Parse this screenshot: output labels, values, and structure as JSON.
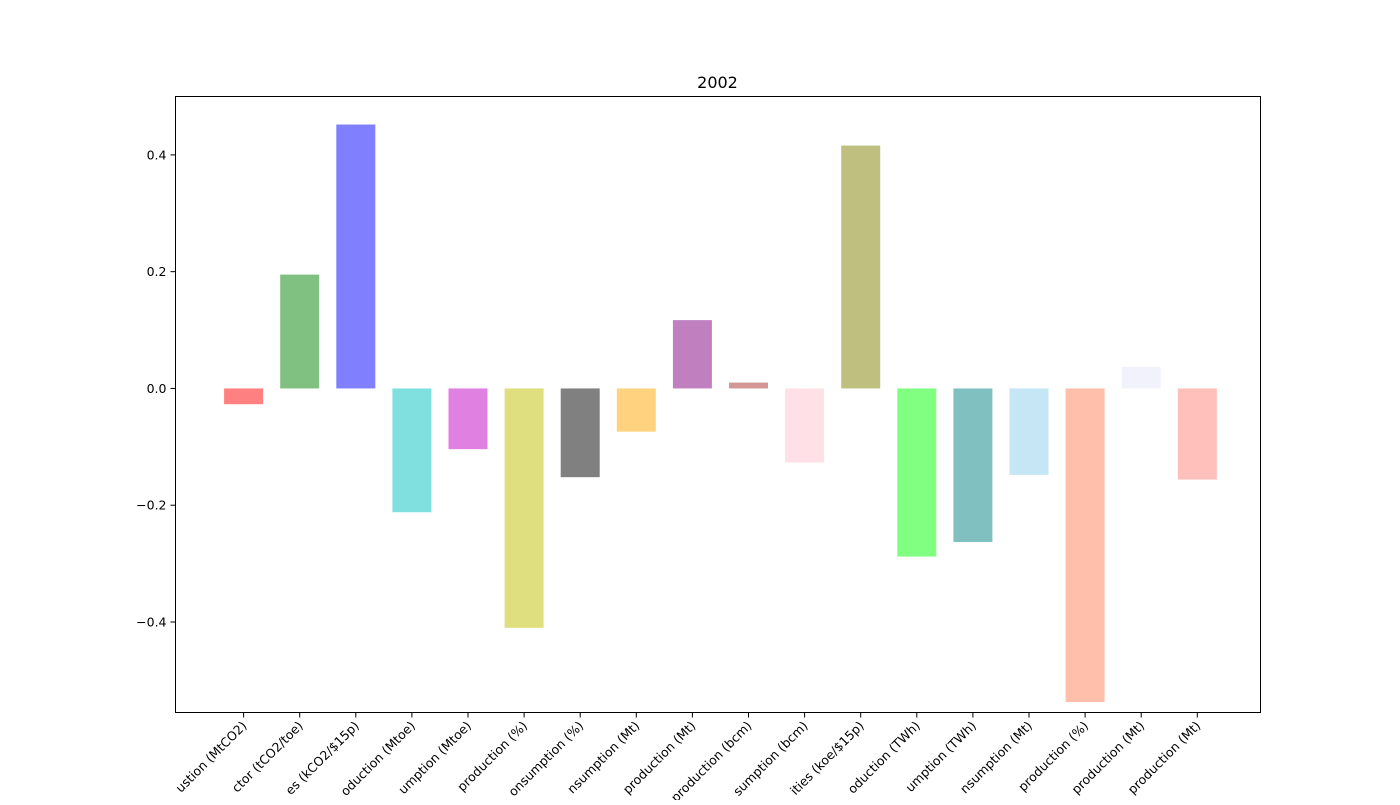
{
  "chart_data": {
    "type": "bar",
    "title": "2002",
    "xlabel": "",
    "ylabel": "",
    "categories": [
      "ustion (MtCO2)",
      "ctor (tCO2/toe)",
      "es (kCO2/$15p)",
      "oduction (Mtoe)",
      "umption (Mtoe)",
      "production (%)",
      "onsumption (%)",
      "nsumption (Mt)",
      "production (Mt)",
      "production (bcm)",
      "sumption (bcm)",
      "ities (koe/$15p)",
      "oduction (TWh)",
      "umption (TWh)",
      "nsumption (Mt)",
      "production (%)",
      "production (Mt)",
      "production (Mt)"
    ],
    "values": [
      -0.027,
      0.195,
      0.452,
      -0.212,
      -0.104,
      -0.41,
      -0.152,
      -0.074,
      0.117,
      0.01,
      -0.127,
      0.416,
      -0.288,
      -0.263,
      -0.148,
      -0.537,
      0.037,
      -0.156
    ],
    "colors": [
      "#ff8080",
      "#80c080",
      "#8080ff",
      "#80e0e0",
      "#e080e0",
      "#dfdf80",
      "#808080",
      "#ffd280",
      "#c080c0",
      "#d29696",
      "#ffe0e6",
      "#bfbf80",
      "#80ff80",
      "#80c0c0",
      "#c4e6f5",
      "#ffbfaa",
      "#f2f2fd",
      "#ffbfbb"
    ],
    "ylim": [
      -0.555,
      0.5
    ],
    "yticks": [
      -0.4,
      -0.2,
      0.0,
      0.2,
      0.4
    ],
    "ytick_labels": [
      "−0.4",
      "−0.2",
      "0.0",
      "0.2",
      "0.4"
    ],
    "grid": false,
    "legend": "none"
  }
}
